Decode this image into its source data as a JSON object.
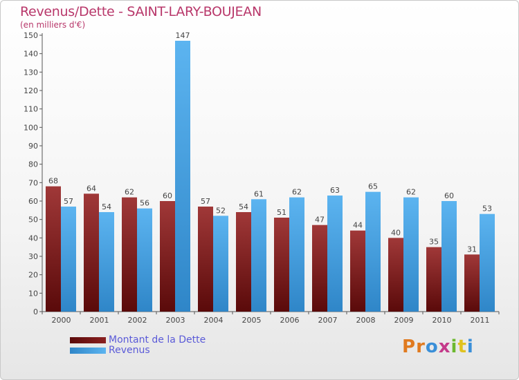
{
  "chart_data": {
    "type": "bar",
    "title": "Revenus/Dette - SAINT-LARY-BOUJEAN",
    "subtitle": "(en milliers d'€)",
    "categories": [
      "2000",
      "2001",
      "2002",
      "2003",
      "2004",
      "2005",
      "2006",
      "2007",
      "2008",
      "2009",
      "2010",
      "2011"
    ],
    "series": [
      {
        "name": "Montant de la Dette",
        "color": "#7a1a1a",
        "values": [
          68,
          64,
          62,
          60,
          57,
          54,
          51,
          47,
          44,
          40,
          35,
          31
        ]
      },
      {
        "name": "Revenus",
        "color": "#4da6e6",
        "values": [
          57,
          54,
          56,
          147,
          52,
          61,
          62,
          63,
          65,
          62,
          60,
          53
        ]
      }
    ],
    "ylim": [
      0,
      150
    ],
    "yticks": [
      0,
      10,
      20,
      30,
      40,
      50,
      60,
      70,
      80,
      90,
      100,
      110,
      120,
      130,
      140,
      150
    ],
    "legend_position": "bottom-left",
    "grid": false
  },
  "logo": {
    "text": "Proxiti",
    "colors": [
      "#e07a1f",
      "#e07a1f",
      "#3a8fd8",
      "#c43a8a",
      "#6cb82f",
      "#e0c21f",
      "#3a8fd8"
    ]
  }
}
